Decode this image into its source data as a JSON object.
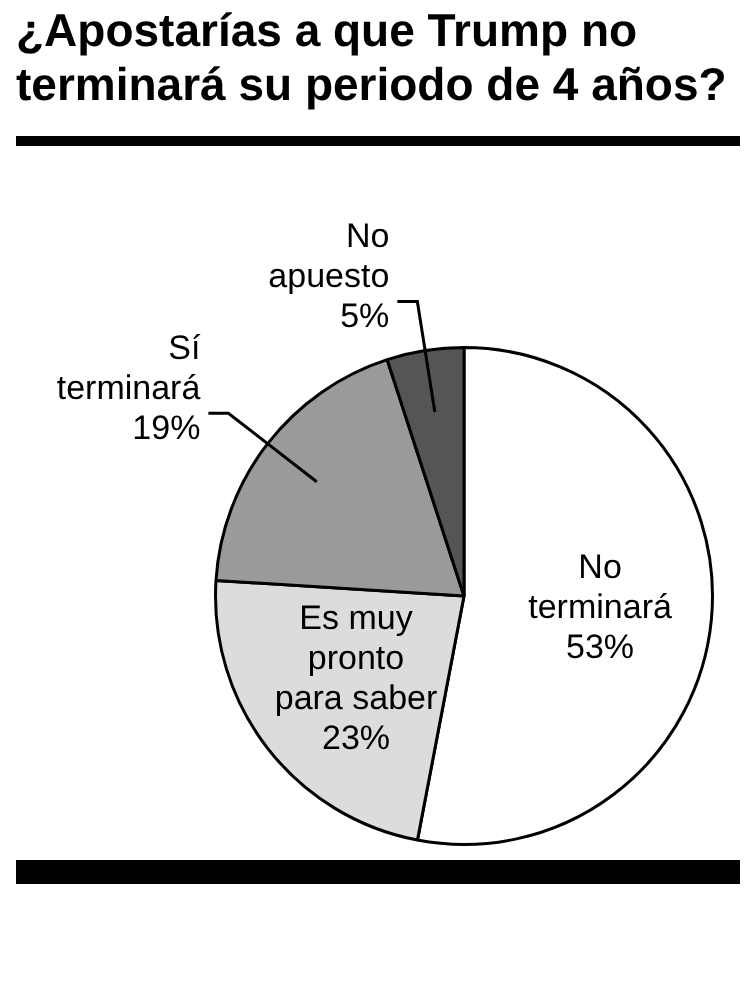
{
  "chart_data": {
    "type": "pie",
    "title": "¿Apostarías a que Trump no terminará su periodo de 4 años?",
    "categories": [
      "No terminará",
      "Es muy pronto para saber",
      "Sí terminará",
      "No apuesto"
    ],
    "values": [
      53,
      23,
      19,
      5
    ],
    "value_labels": [
      "53%",
      "23%",
      "19%",
      "5%"
    ],
    "colors": [
      "#ffffff",
      "#dcdcdc",
      "#9a9a9a",
      "#555555"
    ],
    "legend": false
  }
}
